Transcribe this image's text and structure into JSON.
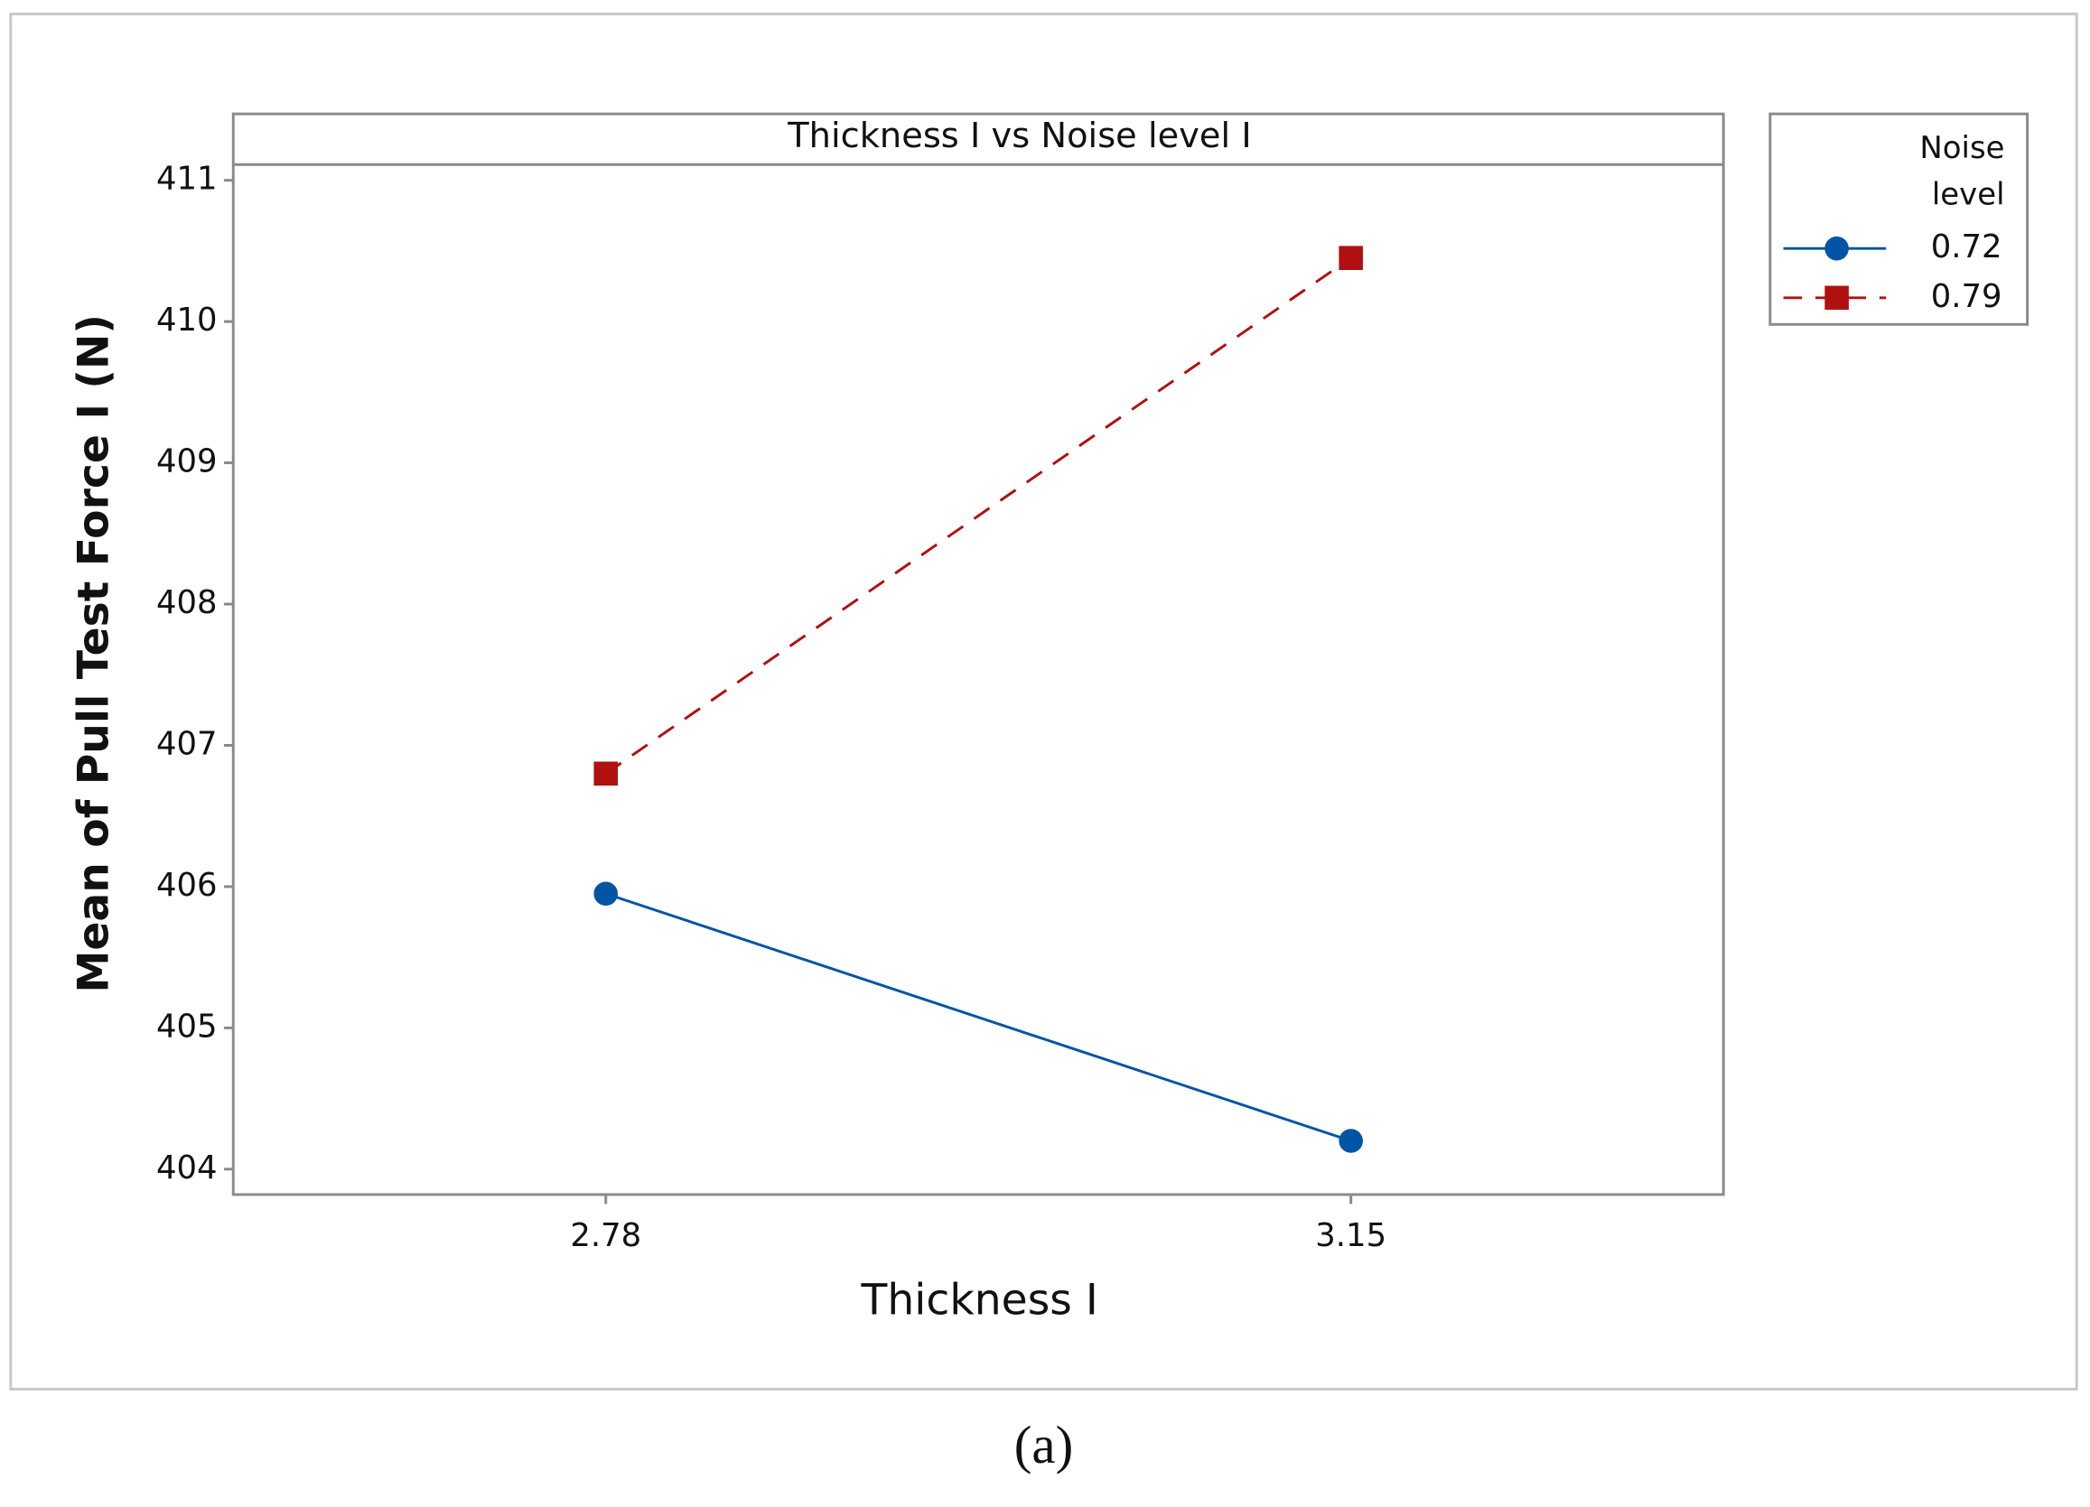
{
  "chart_data": {
    "type": "line",
    "title": "Thickness I  vs  Noise level I",
    "x_label": "Thickness I",
    "y_label": "Mean of Pull Test Force I (N)",
    "categories": [
      "2.78",
      "3.15"
    ],
    "series": [
      {
        "name": "0.72",
        "color": "#0054a6",
        "marker": "circle",
        "linestyle": "solid",
        "values": [
          405.95,
          404.2
        ]
      },
      {
        "name": "0.79",
        "color": "#b01010",
        "marker": "square",
        "linestyle": "dashed",
        "values": [
          406.8,
          410.45
        ]
      }
    ],
    "ylim": [
      403.82,
      411.47
    ],
    "yticks": [
      404,
      405,
      406,
      407,
      408,
      409,
      410,
      411
    ],
    "legend_title": "Noise level",
    "legend_position": "right",
    "caption": "(a)"
  }
}
